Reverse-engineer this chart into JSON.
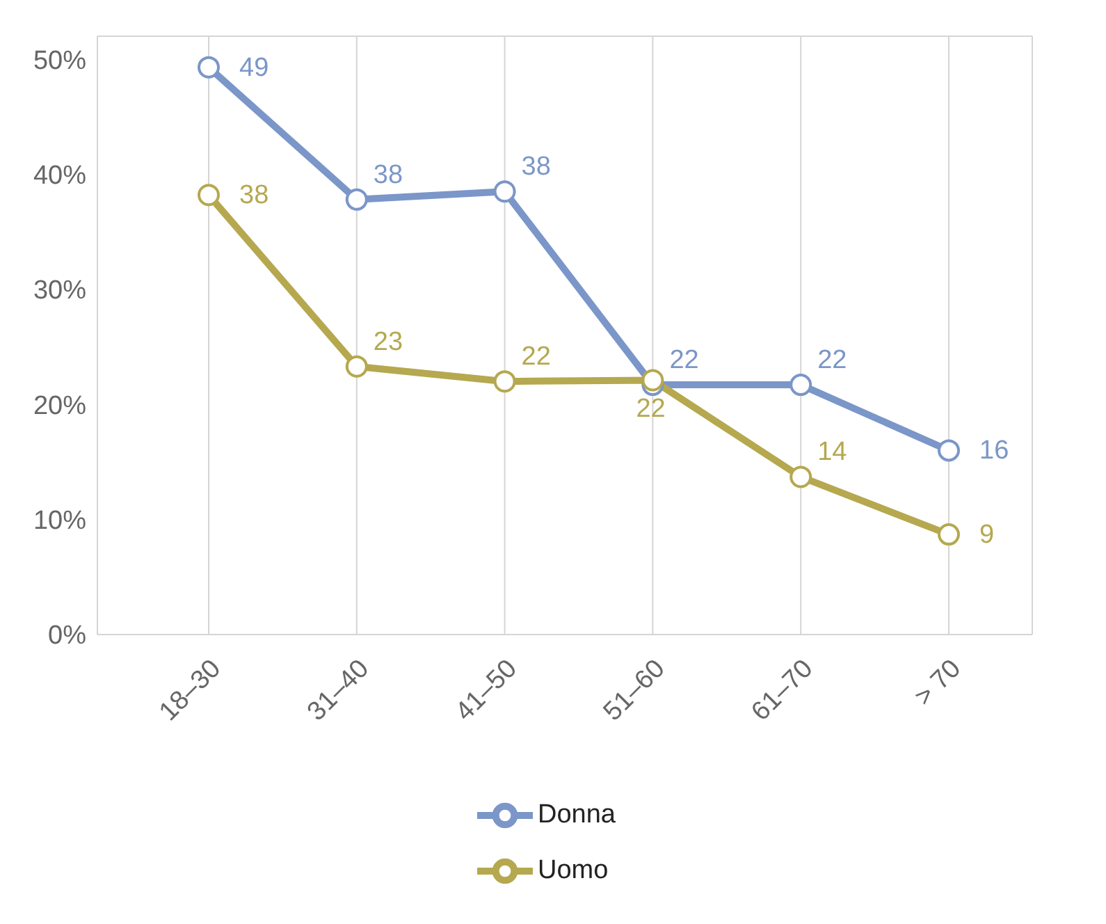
{
  "chart_data": {
    "type": "line",
    "categories": [
      "18–30",
      "31–40",
      "41–50",
      "51–60",
      "61–70",
      "> 70"
    ],
    "series": [
      {
        "name": "Donna",
        "color": "#7b96c8",
        "values": [
          49.3,
          37.8,
          38.5,
          21.7,
          21.7,
          16.0
        ],
        "value_labels": [
          "49",
          "38",
          "38",
          "22",
          "22",
          "16"
        ]
      },
      {
        "name": "Uomo",
        "color": "#b5a84f",
        "values": [
          38.2,
          23.3,
          22.0,
          22.1,
          13.7,
          8.7
        ],
        "value_labels": [
          "38",
          "23",
          "22",
          "22",
          "14",
          "9"
        ]
      }
    ],
    "ylim": [
      0,
      52
    ],
    "yticks": [
      {
        "value": 0,
        "label": "0%"
      },
      {
        "value": 10,
        "label": "10%"
      },
      {
        "value": 20,
        "label": "20%"
      },
      {
        "value": 30,
        "label": "30%"
      },
      {
        "value": 40,
        "label": "40%"
      },
      {
        "value": 50,
        "label": "50%"
      }
    ],
    "grid": true,
    "legend": "bottom",
    "marker": "circle",
    "line_style": "solid"
  }
}
